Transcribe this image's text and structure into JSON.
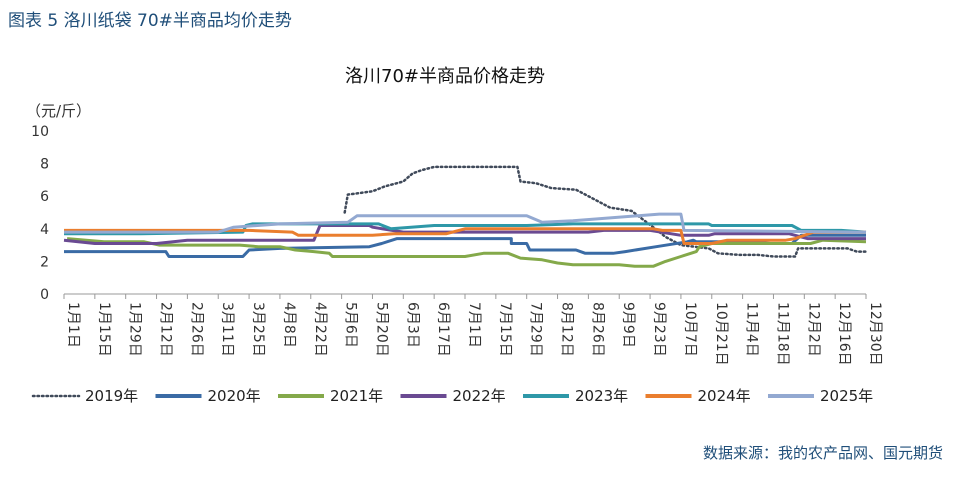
{
  "caption": "图表 5  洛川纸袋 70#半商品均价走势",
  "source": "数据来源：我的农产品网、国元期货",
  "chart_data": {
    "type": "line",
    "title": "洛川70#半商品价格走势",
    "ylabel": "（元/斤）",
    "ylim": [
      0,
      10
    ],
    "yticks": [
      "0",
      "2",
      "4",
      "6",
      "8",
      "10"
    ],
    "x": [
      "1月1日",
      "1月15日",
      "1月29日",
      "2月12日",
      "2月26日",
      "3月11日",
      "3月25日",
      "4月8日",
      "4月22日",
      "5月6日",
      "5月20日",
      "6月3日",
      "6月17日",
      "7月1日",
      "7月15日",
      "7月29日",
      "8月12日",
      "8月26日",
      "9月9日",
      "9月23日",
      "10月7日",
      "10月21日",
      "11月4日",
      "11月18日",
      "12月2日",
      "12月16日",
      "12月30日"
    ],
    "legend_position": "bottom",
    "series": [
      {
        "name": "2019年",
        "color": "#404a5a",
        "dash": "dotted",
        "points": [
          [
            9.1,
            5
          ],
          [
            9.2,
            6.1
          ],
          [
            10,
            6.3
          ],
          [
            10.4,
            6.6
          ],
          [
            11,
            6.9
          ],
          [
            11.3,
            7.4
          ],
          [
            11.6,
            7.6
          ],
          [
            12,
            7.8
          ],
          [
            13,
            7.8
          ],
          [
            14,
            7.8
          ],
          [
            14.7,
            7.8
          ],
          [
            14.8,
            6.9
          ],
          [
            15.3,
            6.8
          ],
          [
            15.8,
            6.5
          ],
          [
            16.6,
            6.4
          ],
          [
            17,
            6
          ],
          [
            17.7,
            5.3
          ],
          [
            18.4,
            5.1
          ],
          [
            19.1,
            4.1
          ],
          [
            19.5,
            3.5
          ],
          [
            20,
            3.0
          ],
          [
            20.9,
            2.8
          ],
          [
            21.2,
            2.5
          ],
          [
            21.9,
            2.4
          ],
          [
            22.5,
            2.4
          ],
          [
            23,
            2.3
          ],
          [
            23.7,
            2.3
          ],
          [
            23.8,
            2.8
          ],
          [
            25.4,
            2.8
          ],
          [
            25.7,
            2.6
          ],
          [
            26,
            2.6
          ]
        ]
      },
      {
        "name": "2020年",
        "color": "#3a6ba5",
        "dash": "solid",
        "points": [
          [
            0,
            2.6
          ],
          [
            2.3,
            2.6
          ],
          [
            3.3,
            2.6
          ],
          [
            3.4,
            2.3
          ],
          [
            5.8,
            2.3
          ],
          [
            6,
            2.7
          ],
          [
            7,
            2.8
          ],
          [
            9.9,
            2.9
          ],
          [
            10.3,
            3.1
          ],
          [
            10.8,
            3.4
          ],
          [
            14.5,
            3.4
          ],
          [
            14.5,
            3.1
          ],
          [
            15,
            3.1
          ],
          [
            15.1,
            2.7
          ],
          [
            16.6,
            2.7
          ],
          [
            16.9,
            2.5
          ],
          [
            17.8,
            2.5
          ],
          [
            18.2,
            2.6
          ],
          [
            19.2,
            2.9
          ],
          [
            20.2,
            3.2
          ],
          [
            20.4,
            3.3
          ],
          [
            20.5,
            3.2
          ],
          [
            22.4,
            3.2
          ],
          [
            22.9,
            3.1
          ],
          [
            23.6,
            3.1
          ],
          [
            23.9,
            3.6
          ],
          [
            26,
            3.6
          ]
        ]
      },
      {
        "name": "2021年",
        "color": "#84a94a",
        "dash": "solid",
        "points": [
          [
            0.1,
            3.4
          ],
          [
            1.3,
            3.2
          ],
          [
            2.6,
            3.2
          ],
          [
            3.1,
            3.0
          ],
          [
            5.7,
            3.0
          ],
          [
            6.3,
            2.9
          ],
          [
            7.0,
            2.9
          ],
          [
            7.5,
            2.7
          ],
          [
            8.1,
            2.6
          ],
          [
            8.6,
            2.5
          ],
          [
            8.7,
            2.3
          ],
          [
            13,
            2.3
          ],
          [
            13.6,
            2.5
          ],
          [
            14.4,
            2.5
          ],
          [
            14.8,
            2.2
          ],
          [
            15.5,
            2.1
          ],
          [
            16,
            1.9
          ],
          [
            16.5,
            1.8
          ],
          [
            17.5,
            1.8
          ],
          [
            18,
            1.8
          ],
          [
            18.5,
            1.7
          ],
          [
            19.1,
            1.7
          ],
          [
            19.5,
            2.0
          ],
          [
            20,
            2.3
          ],
          [
            20.5,
            2.6
          ],
          [
            20.6,
            2.9
          ],
          [
            21,
            3.1
          ],
          [
            21.5,
            3.1
          ],
          [
            23,
            3.1
          ],
          [
            24.2,
            3.1
          ],
          [
            24.6,
            3.3
          ],
          [
            26,
            3.2
          ]
        ]
      },
      {
        "name": "2022年",
        "color": "#6a4a92",
        "dash": "solid",
        "points": [
          [
            0,
            3.3
          ],
          [
            1,
            3.1
          ],
          [
            3,
            3.1
          ],
          [
            4,
            3.3
          ],
          [
            7,
            3.3
          ],
          [
            8.1,
            3.3
          ],
          [
            8.3,
            4.2
          ],
          [
            9.9,
            4.2
          ],
          [
            10,
            4.1
          ],
          [
            11,
            3.8
          ],
          [
            13,
            3.8
          ],
          [
            15,
            3.8
          ],
          [
            17,
            3.8
          ],
          [
            17.5,
            3.9
          ],
          [
            19,
            3.9
          ],
          [
            20,
            3.6
          ],
          [
            20.9,
            3.6
          ],
          [
            21.1,
            3.7
          ],
          [
            23.5,
            3.7
          ],
          [
            24.1,
            3.4
          ],
          [
            25.6,
            3.4
          ],
          [
            26,
            3.4
          ]
        ]
      },
      {
        "name": "2023年",
        "color": "#2e98a8",
        "dash": "solid",
        "points": [
          [
            0,
            3.7
          ],
          [
            2.5,
            3.7
          ],
          [
            5.8,
            3.8
          ],
          [
            5.9,
            4.2
          ],
          [
            6.1,
            4.3
          ],
          [
            9.2,
            4.3
          ],
          [
            10.2,
            4.3
          ],
          [
            10.6,
            4.0
          ],
          [
            12,
            4.2
          ],
          [
            15,
            4.2
          ],
          [
            16.5,
            4.3
          ],
          [
            19,
            4.3
          ],
          [
            20,
            4.3
          ],
          [
            20.9,
            4.3
          ],
          [
            21,
            4.2
          ],
          [
            23.6,
            4.2
          ],
          [
            23.9,
            3.9
          ],
          [
            25.2,
            3.9
          ],
          [
            26,
            3.8
          ]
        ]
      },
      {
        "name": "2024年",
        "color": "#ea7e2e",
        "dash": "solid",
        "points": [
          [
            0,
            3.9
          ],
          [
            3,
            3.9
          ],
          [
            6,
            3.9
          ],
          [
            7.4,
            3.8
          ],
          [
            7.6,
            3.6
          ],
          [
            10,
            3.6
          ],
          [
            10.7,
            3.7
          ],
          [
            12.4,
            3.7
          ],
          [
            12.8,
            3.9
          ],
          [
            13,
            4.0
          ],
          [
            17,
            4.0
          ],
          [
            17.5,
            4.0
          ],
          [
            19.1,
            4.0
          ],
          [
            19.4,
            3.9
          ],
          [
            20,
            3.9
          ],
          [
            20.1,
            3.1
          ],
          [
            21,
            3.1
          ],
          [
            21.5,
            3.3
          ],
          [
            23.4,
            3.3
          ],
          [
            23.7,
            3.4
          ],
          [
            24.3,
            3.8
          ],
          [
            25.5,
            3.8
          ],
          [
            26,
            3.8
          ]
        ]
      },
      {
        "name": "2025年",
        "color": "#93a9d1",
        "dash": "solid",
        "points": [
          [
            0,
            3.8
          ],
          [
            5,
            3.8
          ],
          [
            5.5,
            4.1
          ],
          [
            7,
            4.3
          ],
          [
            9.2,
            4.4
          ],
          [
            9.5,
            4.8
          ],
          [
            15,
            4.8
          ],
          [
            15.5,
            4.4
          ],
          [
            16.5,
            4.5
          ],
          [
            19.3,
            4.9
          ],
          [
            20,
            4.9
          ],
          [
            20.1,
            3.9
          ],
          [
            26,
            3.8
          ]
        ]
      }
    ]
  }
}
